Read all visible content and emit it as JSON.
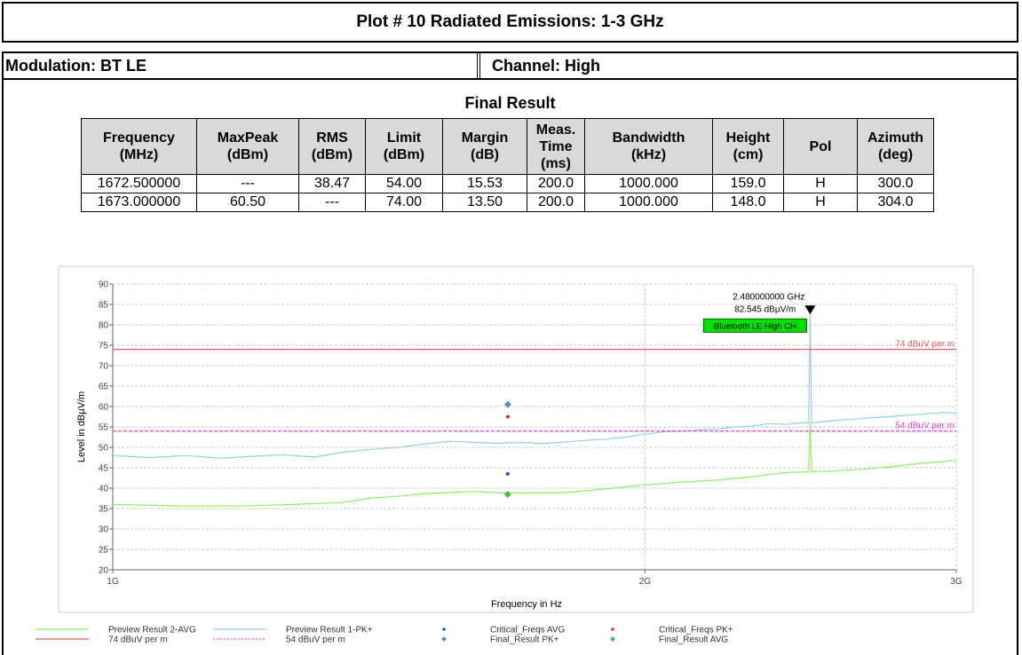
{
  "header": {
    "title": "Plot # 10 Radiated Emissions: 1-3 GHz",
    "modulation": "Modulation: BT LE",
    "channel": "Channel: High"
  },
  "table": {
    "title": "Final Result",
    "header": [
      [
        "Frequency",
        "(MHz)"
      ],
      [
        "MaxPeak",
        "(dBm)"
      ],
      [
        "RMS",
        "(dBm)"
      ],
      [
        "Limit",
        "(dBm)"
      ],
      [
        "Margin",
        "(dB)"
      ],
      [
        "Meas.",
        "Time",
        "(ms)"
      ],
      [
        "Bandwidth",
        "(kHz)"
      ],
      [
        "Height",
        "(cm)"
      ],
      [
        "Pol"
      ],
      [
        "Azimuth",
        "(deg)"
      ]
    ],
    "rows": [
      [
        "1672.500000",
        "---",
        "38.47",
        "54.00",
        "15.53",
        "200.0",
        "1000.000",
        "159.0",
        "H",
        "300.0"
      ],
      [
        "1673.000000",
        "60.50",
        "---",
        "74.00",
        "13.50",
        "200.0",
        "1000.000",
        "148.0",
        "H",
        "304.0"
      ]
    ]
  },
  "chart_data": {
    "type": "line",
    "x_label": "Frequency in Hz",
    "y_label": "Level in dBµV/m",
    "xscale": "log",
    "xlim": [
      1000000000.0,
      3000000000.0
    ],
    "xticks": [
      {
        "value": 1000000000.0,
        "label": "1G"
      },
      {
        "value": 2000000000.0,
        "label": "2G"
      },
      {
        "value": 3000000000.0,
        "label": "3G"
      }
    ],
    "ylim": [
      20,
      90
    ],
    "yticks": [
      20,
      25,
      30,
      35,
      40,
      45,
      50,
      55,
      60,
      65,
      70,
      75,
      80,
      85,
      90
    ],
    "grid": true,
    "marker": {
      "x": 2480000000.0,
      "y": 82.545,
      "x_label": "2.480000000 GHz",
      "y_label": "82.545 dBµV/m",
      "tag": "Bluetooth LE High CH"
    },
    "series": [
      {
        "name": "Preview Result 2-AVG",
        "color": "#90ee60",
        "style": "line",
        "x": [
          1000000000.0,
          1100000000.0,
          1200000000.0,
          1300000000.0,
          1350000000.0,
          1400000000.0,
          1450000000.0,
          1500000000.0,
          1550000000.0,
          1600000000.0,
          1650000000.0,
          1700000000.0,
          1800000000.0,
          1900000000.0,
          2000000000.0,
          2100000000.0,
          2200000000.0,
          2300000000.0,
          2400000000.0,
          2475000000.0,
          2480000000.0,
          2485000000.0,
          2550000000.0,
          2650000000.0,
          2750000000.0,
          2850000000.0,
          2950000000.0,
          3000000000.0
        ],
        "values": [
          36,
          35.6,
          35.7,
          36.2,
          36.5,
          37.6,
          38,
          38.7,
          38.9,
          39.2,
          38.9,
          38.8,
          38.9,
          39.8,
          40.8,
          41.5,
          42,
          42.8,
          43.8,
          44,
          56,
          44,
          44.2,
          44.6,
          45.2,
          46,
          46.5,
          46.8
        ]
      },
      {
        "name": "Preview Result 1-PK+",
        "color": "#9ccbec",
        "style": "line",
        "x": [
          1000000000.0,
          1050000000.0,
          1100000000.0,
          1150000000.0,
          1200000000.0,
          1250000000.0,
          1300000000.0,
          1350000000.0,
          1400000000.0,
          1450000000.0,
          1500000000.0,
          1550000000.0,
          1600000000.0,
          1650000000.0,
          1700000000.0,
          1750000000.0,
          1800000000.0,
          1850000000.0,
          1900000000.0,
          1950000000.0,
          2000000000.0,
          2050000000.0,
          2100000000.0,
          2150000000.0,
          2200000000.0,
          2250000000.0,
          2300000000.0,
          2350000000.0,
          2400000000.0,
          2450000000.0,
          2475000000.0,
          2480000000.0,
          2485000000.0,
          2550000000.0,
          2600000000.0,
          2650000000.0,
          2700000000.0,
          2750000000.0,
          2800000000.0,
          2850000000.0,
          2900000000.0,
          2950000000.0,
          3000000000.0
        ],
        "values": [
          48,
          47.5,
          48,
          47.3,
          47.8,
          48.2,
          47.6,
          48.8,
          49.5,
          50,
          50.8,
          51.5,
          51.2,
          51,
          51.2,
          50.9,
          51.3,
          51.7,
          52,
          52.5,
          53.2,
          53.8,
          54,
          54.3,
          54.5,
          55,
          55.2,
          55.8,
          55.6,
          56,
          56,
          82.545,
          56,
          56.5,
          56.8,
          57,
          57.3,
          57.5,
          57.8,
          58,
          58.3,
          58.5,
          58.4
        ]
      },
      {
        "name": "Critical_Freqs AVG",
        "color": "#2050d0",
        "style": "dot",
        "x": [
          1672500000.0
        ],
        "values": [
          43.5
        ]
      },
      {
        "name": "Critical_Freqs PK+",
        "color": "#e03030",
        "style": "dot",
        "x": [
          1673000000.0
        ],
        "values": [
          57.5
        ]
      },
      {
        "name": "74 dBuV per m",
        "color": "#e06060",
        "style": "line",
        "label_on_plot": true,
        "x": [
          1000000000.0,
          3000000000.0
        ],
        "values": [
          74,
          74
        ]
      },
      {
        "name": "54 dBuV per m",
        "color": "#e040e0",
        "style": "dash",
        "label_on_plot": true,
        "x": [
          1000000000.0,
          3000000000.0
        ],
        "values": [
          54,
          54
        ]
      },
      {
        "name": "Final_Result PK+",
        "color": "#4a90d9",
        "style": "diamond",
        "x": [
          1673000000.0
        ],
        "values": [
          60.5
        ]
      },
      {
        "name": "Final_Result AVG",
        "color": "#40c040",
        "style": "diamond",
        "x": [
          1672500000.0
        ],
        "values": [
          38.47
        ]
      }
    ]
  }
}
